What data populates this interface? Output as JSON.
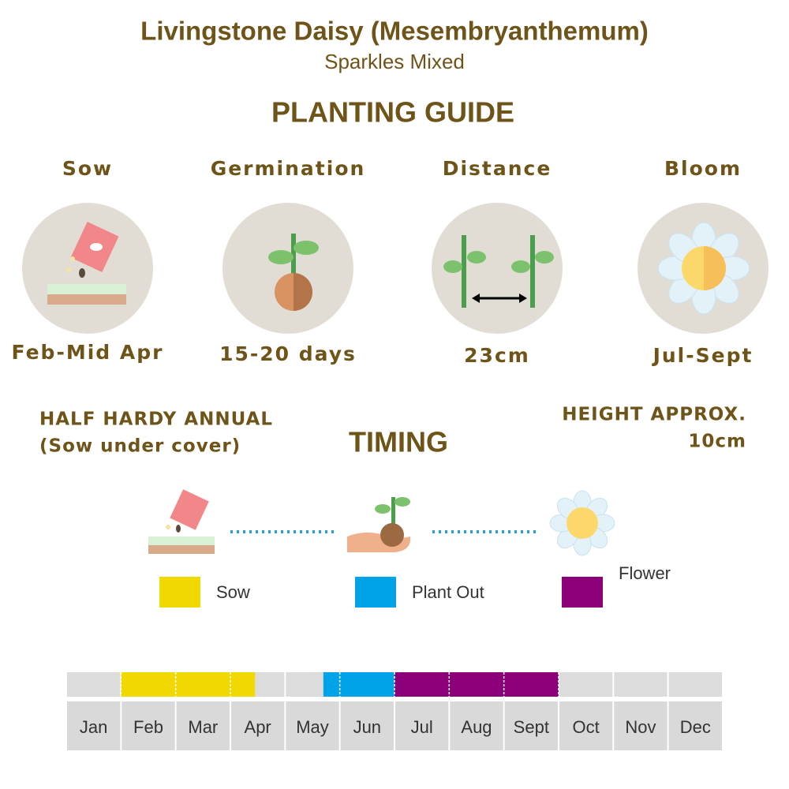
{
  "header": {
    "title": "Livingstone Daisy (Mesembryanthemum)",
    "subtitle": "Sparkles Mixed"
  },
  "guide": {
    "title": "PLANTING GUIDE",
    "items": [
      {
        "label": "Sow",
        "value": "Feb-Mid Apr"
      },
      {
        "label": "Germination",
        "value": "15-20 days"
      },
      {
        "label": "Distance",
        "value": "23cm"
      },
      {
        "label": "Bloom",
        "value": "Jul-Sept"
      }
    ]
  },
  "notes": {
    "left": [
      "HALF HARDY ANNUAL",
      "(Sow under cover)"
    ],
    "right": [
      "HEIGHT APPROX.",
      "10cm"
    ]
  },
  "timing": {
    "title": "TIMING",
    "legend": [
      {
        "name": "Sow",
        "color": "#f0d800",
        "start": 1,
        "end": 3.45
      },
      {
        "name": "Plant Out",
        "color": "#00a2e8",
        "start": 4.7,
        "end": 6
      },
      {
        "name": "Flower",
        "color": "#8b0079",
        "start": 6,
        "end": 9
      }
    ],
    "months": [
      "Jan",
      "Feb",
      "Mar",
      "Apr",
      "May",
      "Jun",
      "Jul",
      "Aug",
      "Sept",
      "Oct",
      "Nov",
      "Dec"
    ]
  }
}
